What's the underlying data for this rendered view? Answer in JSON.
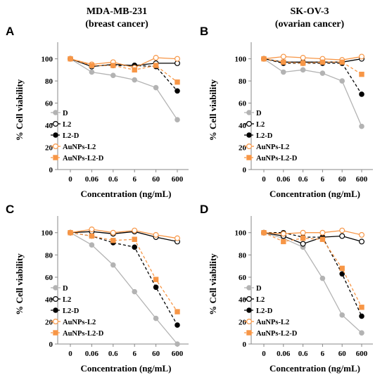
{
  "columns": [
    {
      "line1": "MDA-MB-231",
      "line2": "(breast cancer)"
    },
    {
      "line1": "SK-OV-3",
      "line2": "(ovarian cancer)"
    }
  ],
  "series_styles": [
    {
      "name": "D",
      "color": "#b3b3b3",
      "dash": "solid",
      "marker": "filled-circle"
    },
    {
      "name": "L2",
      "color": "#000000",
      "dash": "solid",
      "marker": "open-circle"
    },
    {
      "name": "L2-D",
      "color": "#000000",
      "dash": "dashed",
      "marker": "filled-circle"
    },
    {
      "name": "AuNPs-L2",
      "color": "#f79646",
      "dash": "solid",
      "marker": "open-circle"
    },
    {
      "name": "AuNPs-L2-D",
      "color": "#f79646",
      "dash": "dashed",
      "marker": "filled-square"
    }
  ],
  "chart_data": [
    {
      "panel": "A",
      "type": "line",
      "xlabel": "Concentration (ng/mL)",
      "ylabel": "% Cell viability",
      "categories": [
        "0",
        "0.06",
        "0.6",
        "6",
        "60",
        "600"
      ],
      "ylim": [
        0,
        115
      ],
      "yticks": [
        0,
        20,
        40,
        60,
        80,
        100
      ],
      "legend_position": "bottom-left",
      "series": [
        {
          "name": "D",
          "values": [
            100,
            88,
            85,
            81,
            74,
            45
          ]
        },
        {
          "name": "L2",
          "values": [
            100,
            93,
            95,
            94,
            96,
            96
          ]
        },
        {
          "name": "L2-D",
          "values": [
            100,
            94,
            94,
            94,
            93,
            71
          ]
        },
        {
          "name": "AuNPs-L2",
          "values": [
            100,
            95,
            97,
            92,
            101,
            100
          ]
        },
        {
          "name": "AuNPs-L2-D",
          "values": [
            100,
            94,
            94,
            90,
            94,
            79
          ]
        }
      ]
    },
    {
      "panel": "B",
      "type": "line",
      "xlabel": "Concentration (ng/mL)",
      "ylabel": "% Cell viability",
      "categories": [
        "0",
        "0.06",
        "0.6",
        "6",
        "60",
        "600"
      ],
      "ylim": [
        0,
        115
      ],
      "yticks": [
        0,
        20,
        40,
        60,
        80,
        100
      ],
      "legend_position": "bottom-left",
      "series": [
        {
          "name": "D",
          "values": [
            100,
            88,
            90,
            87,
            80,
            39
          ]
        },
        {
          "name": "L2",
          "values": [
            100,
            97,
            97,
            97,
            97,
            100
          ]
        },
        {
          "name": "L2-D",
          "values": [
            100,
            96,
            96,
            96,
            96,
            68
          ]
        },
        {
          "name": "AuNPs-L2",
          "values": [
            100,
            102,
            101,
            100,
            99,
            102
          ]
        },
        {
          "name": "AuNPs-L2-D",
          "values": [
            100,
            97,
            96,
            97,
            97,
            86
          ]
        }
      ]
    },
    {
      "panel": "C",
      "type": "line",
      "xlabel": "Concentration (ng/mL)",
      "ylabel": "% Cell viability",
      "categories": [
        "0",
        "0.06",
        "0.6",
        "6",
        "60",
        "600"
      ],
      "ylim": [
        0,
        115
      ],
      "yticks": [
        0,
        20,
        40,
        60,
        80,
        100
      ],
      "legend_position": "bottom-left",
      "series": [
        {
          "name": "D",
          "values": [
            100,
            89,
            71,
            47,
            23,
            0
          ]
        },
        {
          "name": "L2",
          "values": [
            100,
            101,
            99,
            101,
            96,
            92
          ]
        },
        {
          "name": "L2-D",
          "values": [
            100,
            97,
            91,
            87,
            51,
            17
          ]
        },
        {
          "name": "AuNPs-L2",
          "values": [
            100,
            103,
            100,
            102,
            98,
            95
          ]
        },
        {
          "name": "AuNPs-L2-D",
          "values": [
            100,
            97,
            93,
            94,
            58,
            29
          ]
        }
      ]
    },
    {
      "panel": "D",
      "type": "line",
      "xlabel": "Concentration (ng/mL)",
      "ylabel": "% Cell viability",
      "categories": [
        "0",
        "0.06",
        "0.6",
        "6",
        "60",
        "600"
      ],
      "ylim": [
        0,
        115
      ],
      "yticks": [
        0,
        20,
        40,
        60,
        80,
        100
      ],
      "legend_position": "bottom-left",
      "series": [
        {
          "name": "D",
          "values": [
            100,
            95,
            87,
            59,
            26,
            10
          ]
        },
        {
          "name": "L2",
          "values": [
            100,
            97,
            90,
            96,
            97,
            92
          ]
        },
        {
          "name": "L2-D",
          "values": [
            100,
            100,
            96,
            96,
            63,
            25
          ]
        },
        {
          "name": "AuNPs-L2",
          "values": [
            100,
            99,
            100,
            100,
            102,
            98
          ]
        },
        {
          "name": "AuNPs-L2-D",
          "values": [
            100,
            92,
            95,
            94,
            68,
            33
          ]
        }
      ]
    }
  ]
}
